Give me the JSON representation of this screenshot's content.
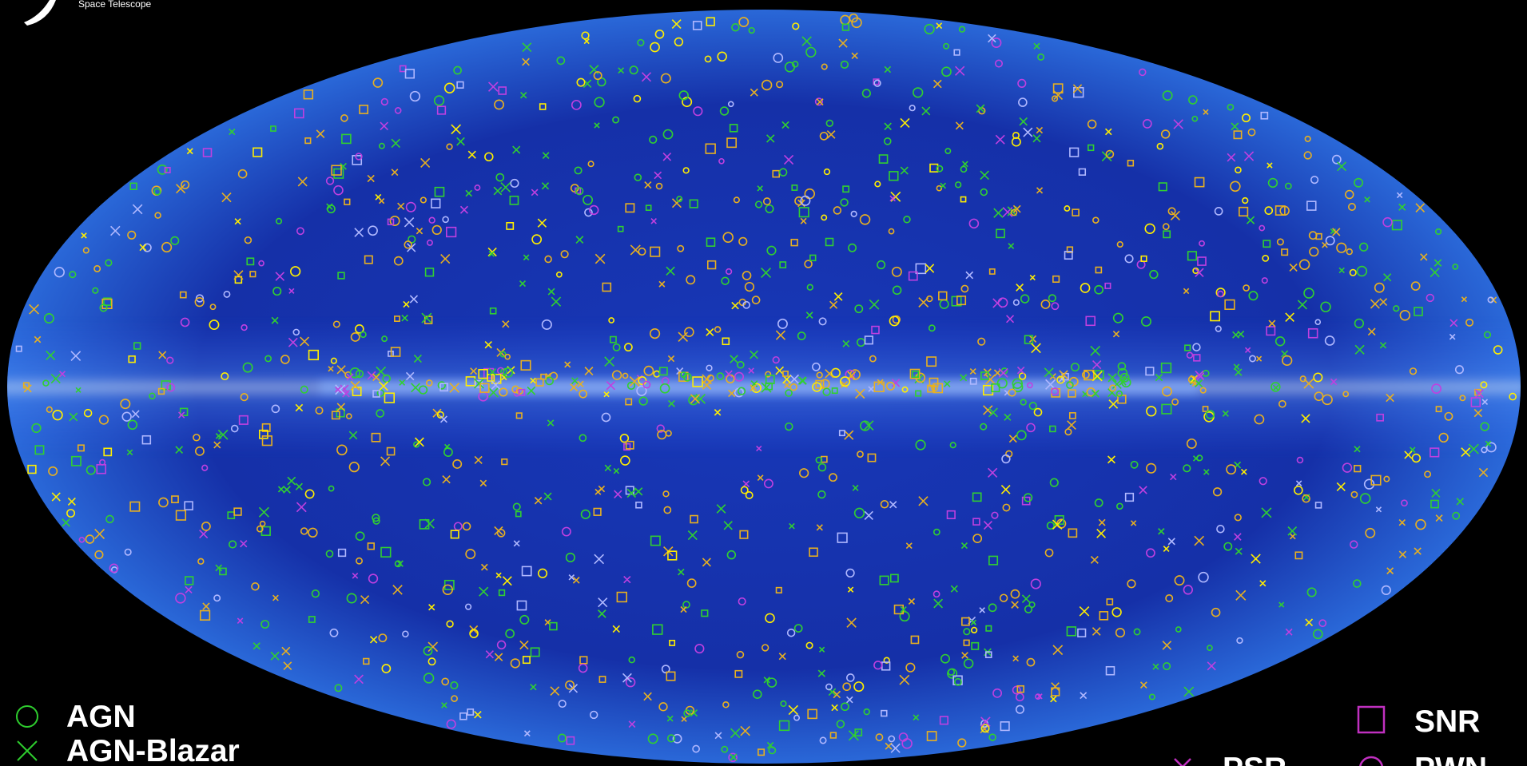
{
  "logo": {
    "text": "Space Telescope"
  },
  "legend": {
    "items": [
      {
        "label": "AGN"
      },
      {
        "label": "AGN-Blazar"
      },
      {
        "label": "SNR"
      },
      {
        "label": "PSR"
      },
      {
        "label": "PWN"
      }
    ]
  }
}
